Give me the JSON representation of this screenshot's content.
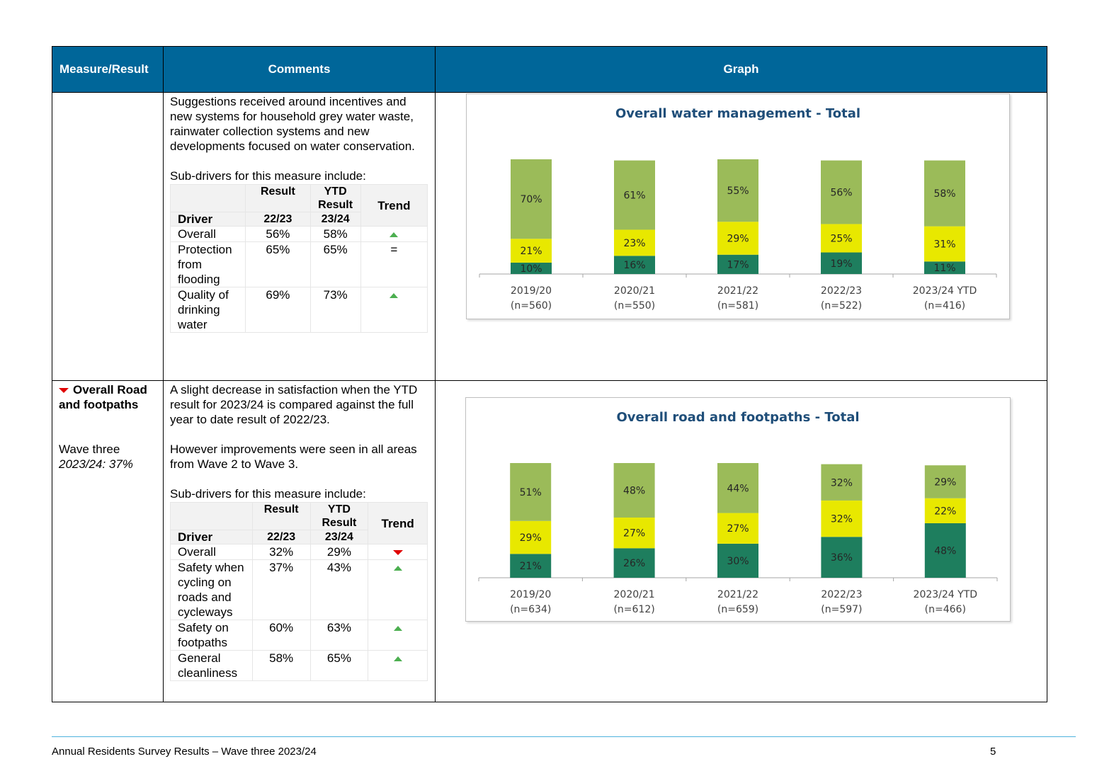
{
  "headers": {
    "measure": "Measure/Result",
    "comments": "Comments",
    "graph": "Graph"
  },
  "rows": [
    {
      "measure_title": "",
      "comments_para1": "Suggestions received around incentives and new systems for household grey water waste, rainwater collection systems and new developments focused on water conservation.",
      "subdrivers_intro": "Sub-drivers for this measure include:",
      "table_headers": {
        "result": "Result",
        "ytd_result": "YTD Result",
        "trend": "Trend",
        "driver": "Driver",
        "col1": "22/23",
        "col2": "23/24"
      },
      "drivers": [
        {
          "name": "Overall",
          "v1": "56%",
          "v2": "58%",
          "trend": "up"
        },
        {
          "name": "Protection from flooding",
          "v1": "65%",
          "v2": "65%",
          "trend": "=",
          "trend_text": "="
        },
        {
          "name": "Quality of drinking water",
          "v1": "69%",
          "v2": "73%",
          "trend": "up"
        }
      ]
    },
    {
      "measure_title": "Overall Road and footpaths",
      "measure_trend": "down",
      "wave_label": "Wave three",
      "wave_value": "2023/24: 37%",
      "comments_para1": "A slight decrease in satisfaction when the YTD result for 2023/24 is compared against the full year to date result of 2022/23.",
      "comments_para2": "However improvements were seen in all areas from Wave 2 to Wave 3.",
      "subdrivers_intro": "Sub-drivers for this measure include:",
      "table_headers": {
        "result": "Result",
        "ytd_result": "YTD Result",
        "trend": "Trend",
        "driver": "Driver",
        "col1": "22/23",
        "col2": "23/24"
      },
      "drivers": [
        {
          "name": "Overall",
          "v1": "32%",
          "v2": "29%",
          "trend": "down"
        },
        {
          "name": "Safety when cycling on roads and cycleways",
          "v1": "37%",
          "v2": "43%",
          "trend": "up"
        },
        {
          "name": "Safety on footpaths",
          "v1": "60%",
          "v2": "63%",
          "trend": "up"
        },
        {
          "name": "General cleanliness",
          "v1": "58%",
          "v2": "65%",
          "trend": "up"
        }
      ]
    }
  ],
  "colors": {
    "header_bg": "#006699",
    "top": "#9bbb59",
    "mid": "#e8e800",
    "bottom": "#1e7e5e",
    "title": "#1f4e79"
  },
  "chart_data": [
    {
      "type": "bar",
      "stacked": true,
      "title": "Overall water management - Total",
      "categories": [
        "2019/20",
        "2020/21",
        "2021/22",
        "2022/23",
        "2023/24 YTD"
      ],
      "sample_sizes": [
        "(n=560)",
        "(n=550)",
        "(n=581)",
        "(n=522)",
        "(n=416)"
      ],
      "series": [
        {
          "values": [
            10,
            16,
            17,
            19,
            11
          ],
          "color": "#1e7e5e"
        },
        {
          "values": [
            21,
            23,
            29,
            25,
            31
          ],
          "color": "#e8e800"
        },
        {
          "values": [
            70,
            61,
            55,
            56,
            58
          ],
          "color": "#9bbb59"
        }
      ],
      "value_suffix": "%",
      "legend": "none",
      "grid": false
    },
    {
      "type": "bar",
      "stacked": true,
      "title": "Overall road and footpaths - Total",
      "categories": [
        "2019/20",
        "2020/21",
        "2021/22",
        "2022/23",
        "2023/24 YTD"
      ],
      "sample_sizes": [
        "(n=634)",
        "(n=612)",
        "(n=659)",
        "(n=597)",
        "(n=466)"
      ],
      "series": [
        {
          "values": [
            21,
            26,
            30,
            36,
            48
          ],
          "color": "#1e7e5e"
        },
        {
          "values": [
            29,
            27,
            27,
            32,
            22
          ],
          "color": "#e8e800"
        },
        {
          "values": [
            51,
            48,
            44,
            32,
            29
          ],
          "color": "#9bbb59"
        }
      ],
      "value_suffix": "%",
      "legend": "none",
      "grid": false
    }
  ],
  "footer": {
    "text": "Annual Residents Survey Results – Wave three 2023/24",
    "page": "5"
  }
}
